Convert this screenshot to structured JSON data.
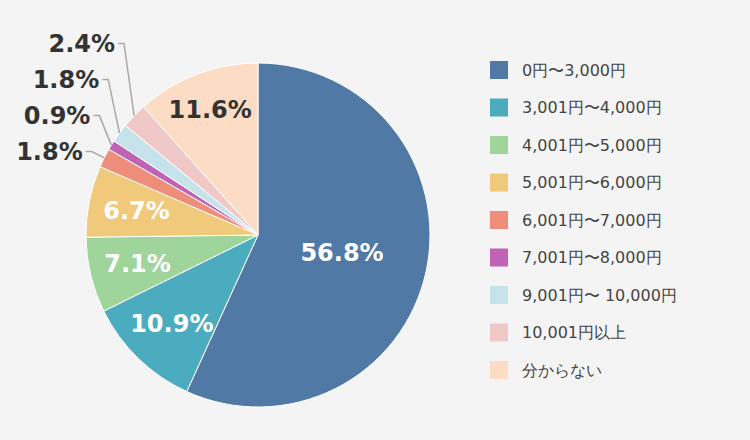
{
  "chart_data": {
    "type": "pie",
    "categories": [
      "0円〜3,000円",
      "3,001円〜4,000円",
      "4,001円〜5,000円",
      "5,001円〜6,000円",
      "6,001円〜7,000円",
      "7,001円〜8,000円",
      "9,001円〜 10,000円",
      "10,001円以上",
      "分からない"
    ],
    "values": [
      56.8,
      10.9,
      7.1,
      6.7,
      1.8,
      0.9,
      1.8,
      2.4,
      11.6
    ],
    "value_labels": [
      "56.8%",
      "10.9%",
      "7.1%",
      "6.7%",
      "1.8%",
      "0.9%",
      "1.8%",
      "2.4%",
      "11.6%"
    ],
    "colors": [
      "#5079a5",
      "#4bacc0",
      "#9fd49a",
      "#f0c97a",
      "#ee8d7a",
      "#c063b4",
      "#c6e3ec",
      "#f0c8c8",
      "#fcdcc4"
    ],
    "data_labels": true,
    "legend": "right"
  }
}
